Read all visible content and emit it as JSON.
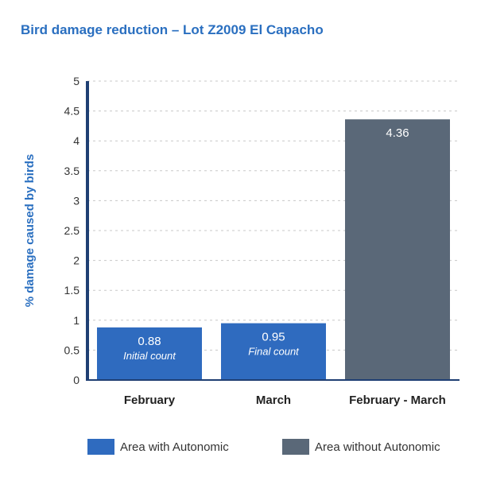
{
  "chart_data": {
    "type": "bar",
    "title": "Bird damage reduction – Lot Z2009 El Capacho",
    "xlabel": "",
    "ylabel": "% damage caused by birds",
    "ylim": [
      0,
      5
    ],
    "yticks": [
      "0",
      "0.5",
      "1",
      "1.5",
      "2",
      "2.5",
      "3",
      "3.5",
      "4",
      "4.5",
      "5"
    ],
    "grid": true,
    "legend_position": "bottom",
    "categories": [
      "February",
      "March",
      "February - March"
    ],
    "bars": [
      {
        "category": "February",
        "value": 0.88,
        "label": "0.88",
        "sublabel": "Initial count",
        "series": "Area with Autonomic"
      },
      {
        "category": "March",
        "value": 0.95,
        "label": "0.95",
        "sublabel": "Final count",
        "series": "Area with Autonomic"
      },
      {
        "category": "February - March",
        "value": 4.36,
        "label": "4.36",
        "sublabel": "",
        "series": "Area without Autonomic"
      }
    ],
    "series": [
      {
        "name": "Area with Autonomic",
        "color": "#2f6bbf"
      },
      {
        "name": "Area without Autonomic",
        "color": "#5a6878"
      }
    ],
    "colors": {
      "title": "#2a6fc0",
      "ylabel": "#2a6fc0",
      "axis": "#1f3f73",
      "grid": "#c8c8c8"
    }
  }
}
